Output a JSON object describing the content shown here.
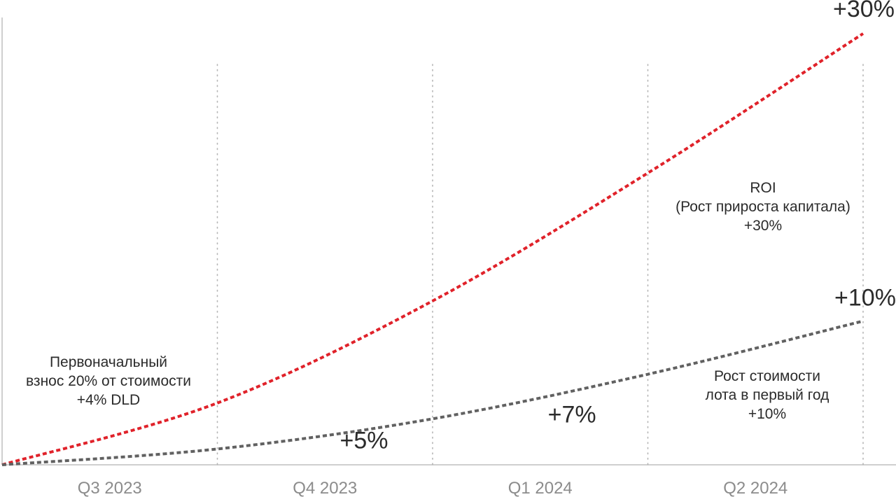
{
  "chart_data": {
    "type": "line",
    "categories": [
      "Q3 2023",
      "Q4 2023",
      "Q1 2024",
      "Q2 2024"
    ],
    "series": [
      {
        "color": "#e0222a",
        "dash": true,
        "x": [
          0,
          1,
          2,
          3,
          4
        ],
        "values": [
          0,
          4.3,
          11.4,
          20.3,
          30
        ]
      },
      {
        "color": "#616161",
        "dash": true,
        "x": [
          0,
          1,
          2,
          3,
          4
        ],
        "values": [
          0,
          1.1,
          3.2,
          6.3,
          10
        ]
      }
    ],
    "value_labels": [
      {
        "text": "+30%",
        "series": 0,
        "at": 4
      },
      {
        "text": "+10%",
        "series": 1,
        "at": 4
      },
      {
        "text": "+5%",
        "series": 1,
        "at": 1.6
      },
      {
        "text": "+7%",
        "series": 1,
        "at": 2.55
      }
    ],
    "annotations": [
      {
        "id": "down_payment",
        "lines": [
          "Первоначальный",
          "взнос 20% от стоимости",
          "+4% DLD"
        ]
      },
      {
        "id": "roi",
        "lines": [
          "ROI",
          "(Рост прироста капитала)",
          "+30%"
        ]
      },
      {
        "id": "lot_growth",
        "lines": [
          "Рост стоимости",
          "лота в первый год",
          "+10%"
        ]
      }
    ],
    "xlabel": "",
    "ylabel": "",
    "ylim": [
      0,
      30
    ],
    "grid": "vertical-dotted",
    "legend": "none"
  }
}
